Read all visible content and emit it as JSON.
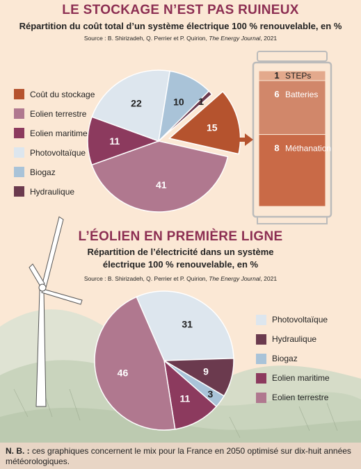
{
  "chart_data": [
    {
      "type": "pie",
      "title": "LE STOCKAGE N’EST PAS RUINEUX",
      "subtitle": "Répartition du coût total d’un système électrique 100 % renouvelable, en %",
      "source_prefix": "Source : B. Shirizadeh, Q. Perrier et P. Quirion, ",
      "source_journal": "The Energy Journal",
      "source_suffix": ", 2021",
      "legend_placement": "left",
      "slices": [
        {
          "name": "Coût du stockage",
          "value": 15,
          "color": "#b5532e",
          "exploded": true
        },
        {
          "name": "Eolien terrestre",
          "value": 41,
          "color": "#b0788f"
        },
        {
          "name": "Eolien maritime",
          "value": 11,
          "color": "#8c3a5e"
        },
        {
          "name": "Photovoltaïque",
          "value": 22,
          "color": "#dde6ee"
        },
        {
          "name": "Biogaz",
          "value": 10,
          "color": "#a9c3d8"
        },
        {
          "name": "Hydraulique",
          "value": 1,
          "color": "#6b3a4e"
        }
      ],
      "legend_order": [
        "Coût du stockage",
        "Eolien terrestre",
        "Eolien maritime",
        "Photovoltaïque",
        "Biogaz",
        "Hydraulique"
      ],
      "breakdown": [
        {
          "name": "STEPs",
          "value": 1,
          "color": "#e3a98c"
        },
        {
          "name": "Batteries",
          "value": 6,
          "color": "#d1876a"
        },
        {
          "name": "Méthanation",
          "value": 8,
          "color": "#c96a47"
        }
      ]
    },
    {
      "type": "pie",
      "title": "L’ÉOLIEN EN PREMIÈRE LIGNE",
      "subtitle_line1": "Répartition de l’électricité dans un système",
      "subtitle_line2": "électrique 100 % renouvelable, en %",
      "source_prefix": "Source : B. Shirizadeh, Q. Perrier et P. Quirion, ",
      "source_journal": "The Energy Journal",
      "source_suffix": ", 2021",
      "legend_placement": "right",
      "slices": [
        {
          "name": "Photovoltaïque",
          "value": 31,
          "color": "#dde6ee"
        },
        {
          "name": "Hydraulique",
          "value": 9,
          "color": "#6b3a4e"
        },
        {
          "name": "Biogaz",
          "value": 3,
          "color": "#a9c3d8"
        },
        {
          "name": "Eolien maritime",
          "value": 11,
          "color": "#8c3a5e"
        },
        {
          "name": "Eolien terrestre",
          "value": 46,
          "color": "#b0788f"
        }
      ]
    }
  ],
  "footnote": {
    "label": "N. B. :",
    "text": " ces graphiques concernent le mix pour la France en 2050 optimisé sur dix-huit années météorologiques."
  }
}
